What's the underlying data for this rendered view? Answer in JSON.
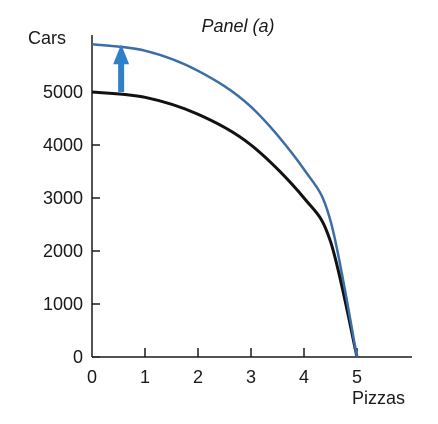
{
  "chart_data": {
    "type": "line",
    "title": "Panel  (a)",
    "xlabel": "Pizzas",
    "ylabel": "Cars",
    "xlim": [
      0,
      6
    ],
    "ylim": [
      0,
      6000
    ],
    "xticks": [
      "0",
      "1",
      "2",
      "3",
      "4",
      "5"
    ],
    "yticks": [
      "0",
      "1000",
      "2000",
      "3000",
      "4000",
      "5000"
    ],
    "grid": false,
    "series": [
      {
        "color": "#111111",
        "points": [
          [
            0,
            5000
          ],
          [
            1,
            4900
          ],
          [
            2,
            4580
          ],
          [
            3,
            4000
          ],
          [
            4,
            3000
          ],
          [
            4.5,
            2180
          ],
          [
            5,
            0
          ]
        ]
      },
      {
        "color": "#3a6ea5",
        "points": [
          [
            0,
            5900
          ],
          [
            1,
            5780
          ],
          [
            2,
            5400
          ],
          [
            3,
            4720
          ],
          [
            4,
            3540
          ],
          [
            4.5,
            2570
          ],
          [
            5,
            0
          ]
        ]
      }
    ],
    "annotations": [
      {
        "kind": "arrow",
        "color": "#2f80c8",
        "from": [
          0.55,
          5000
        ],
        "to": [
          0.55,
          5900
        ]
      }
    ]
  }
}
